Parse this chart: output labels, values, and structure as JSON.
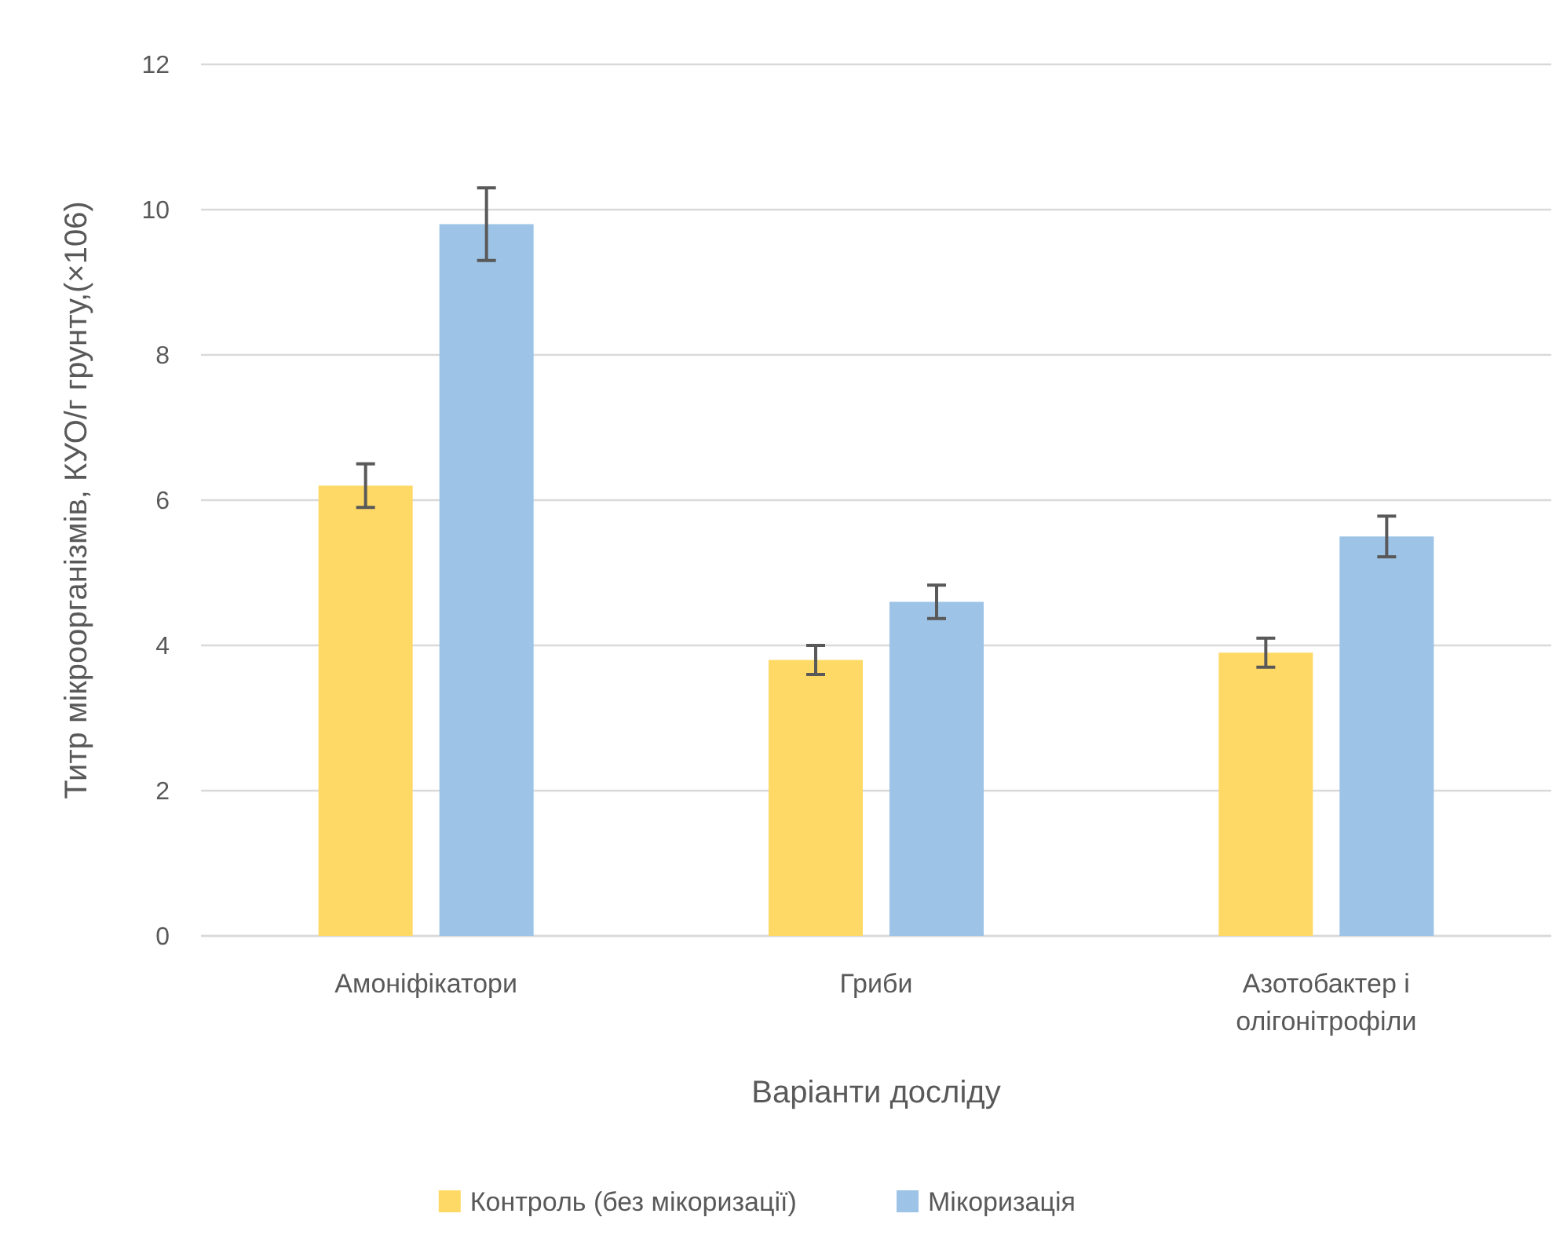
{
  "chart_data": {
    "type": "bar",
    "xlabel": "Варіанти досліду",
    "ylabel": "Титр мікроорганізмів, КУО/г грунту,(×106)",
    "categories": [
      "Амоніфікатори",
      "Гриби",
      "Азотобактер і олігонітрофіли"
    ],
    "series": [
      {
        "name": "Контроль (без мікоризації)",
        "color": "#ffd966",
        "values": [
          6.2,
          3.8,
          3.9
        ],
        "errors": [
          0.3,
          0.2,
          0.2
        ]
      },
      {
        "name": "Мікоризація",
        "color": "#9dc3e6",
        "values": [
          9.8,
          4.6,
          5.5
        ],
        "errors": [
          0.5,
          0.23,
          0.28
        ]
      }
    ],
    "ylim": [
      0,
      12
    ],
    "yticks": [
      0,
      2,
      4,
      6,
      8,
      10,
      12
    ],
    "grid": "y",
    "legend": "bottom"
  }
}
